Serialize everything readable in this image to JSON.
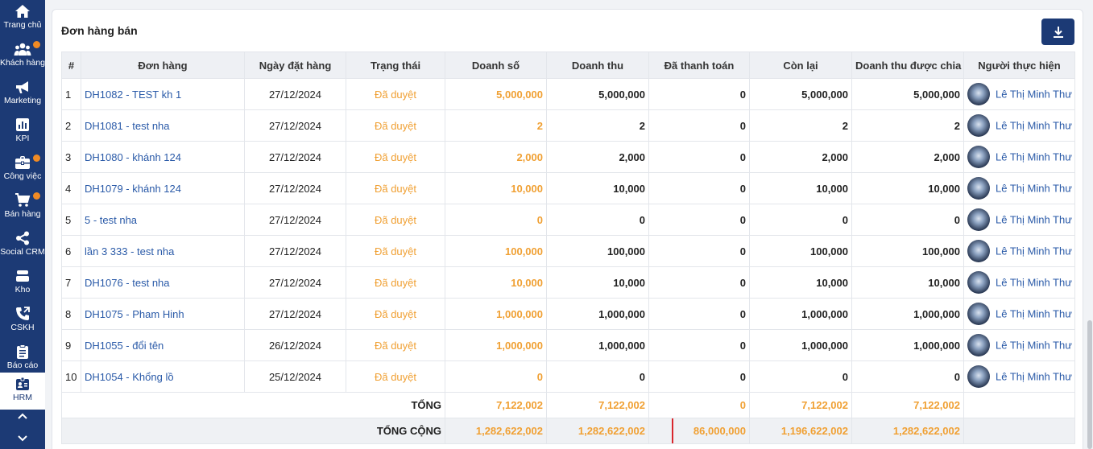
{
  "sidebar": {
    "items": [
      {
        "label": "Trang chủ",
        "icon": "home-icon",
        "badge": false
      },
      {
        "label": "Khách hàng",
        "icon": "users-icon",
        "badge": true
      },
      {
        "label": "Marketing",
        "icon": "megaphone-icon",
        "badge": false
      },
      {
        "label": "KPI",
        "icon": "chart-icon",
        "badge": false
      },
      {
        "label": "Công việc",
        "icon": "briefcase-icon",
        "badge": true
      },
      {
        "label": "Bán hàng",
        "icon": "cart-icon",
        "badge": true
      },
      {
        "label": "Social CRM",
        "icon": "share-icon",
        "badge": false
      },
      {
        "label": "Kho",
        "icon": "warehouse-icon",
        "badge": false
      },
      {
        "label": "CSKH",
        "icon": "phone-icon",
        "badge": false
      },
      {
        "label": "Báo cáo",
        "icon": "clipboard-icon",
        "badge": false
      },
      {
        "label": "HRM",
        "icon": "id-badge-icon",
        "badge": false,
        "active": true
      }
    ]
  },
  "panel": {
    "title": "Đơn hàng bán",
    "download_icon": "download-icon"
  },
  "table": {
    "headers": {
      "index": "#",
      "order": "Đơn hàng",
      "date": "Ngày đặt hàng",
      "status": "Trạng thái",
      "sales": "Doanh số",
      "revenue": "Doanh thu",
      "paid": "Đã thanh toán",
      "remaining": "Còn lại",
      "shared_revenue": "Doanh thu được chia",
      "performer": "Người thực hiện"
    },
    "rows": [
      {
        "index": "1",
        "order": "DH1082 - TEST kh 1",
        "date": "27/12/2024",
        "status": "Đã duyệt",
        "sales": "5,000,000",
        "revenue": "5,000,000",
        "paid": "0",
        "remaining": "5,000,000",
        "shared_revenue": "5,000,000",
        "performer": "Lê Thị Minh Thư"
      },
      {
        "index": "2",
        "order": "DH1081 - test nha",
        "date": "27/12/2024",
        "status": "Đã duyệt",
        "sales": "2",
        "revenue": "2",
        "paid": "0",
        "remaining": "2",
        "shared_revenue": "2",
        "performer": "Lê Thị Minh Thư"
      },
      {
        "index": "3",
        "order": "DH1080 - khánh 124",
        "date": "27/12/2024",
        "status": "Đã duyệt",
        "sales": "2,000",
        "revenue": "2,000",
        "paid": "0",
        "remaining": "2,000",
        "shared_revenue": "2,000",
        "performer": "Lê Thị Minh Thư"
      },
      {
        "index": "4",
        "order": "DH1079 - khánh 124",
        "date": "27/12/2024",
        "status": "Đã duyệt",
        "sales": "10,000",
        "revenue": "10,000",
        "paid": "0",
        "remaining": "10,000",
        "shared_revenue": "10,000",
        "performer": "Lê Thị Minh Thư"
      },
      {
        "index": "5",
        "order": "5 - test nha",
        "date": "27/12/2024",
        "status": "Đã duyệt",
        "sales": "0",
        "revenue": "0",
        "paid": "0",
        "remaining": "0",
        "shared_revenue": "0",
        "performer": "Lê Thị Minh Thư"
      },
      {
        "index": "6",
        "order": "lần 3 333 - test nha",
        "date": "27/12/2024",
        "status": "Đã duyệt",
        "sales": "100,000",
        "revenue": "100,000",
        "paid": "0",
        "remaining": "100,000",
        "shared_revenue": "100,000",
        "performer": "Lê Thị Minh Thư"
      },
      {
        "index": "7",
        "order": "DH1076 - test nha",
        "date": "27/12/2024",
        "status": "Đã duyệt",
        "sales": "10,000",
        "revenue": "10,000",
        "paid": "0",
        "remaining": "10,000",
        "shared_revenue": "10,000",
        "performer": "Lê Thị Minh Thư"
      },
      {
        "index": "8",
        "order": "DH1075 - Pham Hinh",
        "date": "27/12/2024",
        "status": "Đã duyệt",
        "sales": "1,000,000",
        "revenue": "1,000,000",
        "paid": "0",
        "remaining": "1,000,000",
        "shared_revenue": "1,000,000",
        "performer": "Lê Thị Minh Thư"
      },
      {
        "index": "9",
        "order": "DH1055 - đổi tên",
        "date": "26/12/2024",
        "status": "Đã duyệt",
        "sales": "1,000,000",
        "revenue": "1,000,000",
        "paid": "0",
        "remaining": "1,000,000",
        "shared_revenue": "1,000,000",
        "performer": "Lê Thị Minh Thư"
      },
      {
        "index": "10",
        "order": "DH1054 - Khổng lồ",
        "date": "25/12/2024",
        "status": "Đã duyệt",
        "sales": "0",
        "revenue": "0",
        "paid": "0",
        "remaining": "0",
        "shared_revenue": "0",
        "performer": "Lê Thị Minh Thư"
      }
    ],
    "subtotal": {
      "label": "TỔNG",
      "sales": "7,122,002",
      "revenue": "7,122,002",
      "paid": "0",
      "remaining": "7,122,002",
      "shared_revenue": "7,122,002"
    },
    "grand_total": {
      "label": "TỔNG CỘNG",
      "sales": "1,282,622,002",
      "revenue": "1,282,622,002",
      "paid": "86,000,000",
      "remaining": "1,196,622,002",
      "shared_revenue": "1,282,622,002"
    }
  },
  "colors": {
    "sidebar_bg": "#1c3a75",
    "accent_orange": "#f0a033",
    "link_blue": "#2a5aa8",
    "highlight_red": "#d9262c",
    "badge_orange": "#f08a24"
  }
}
